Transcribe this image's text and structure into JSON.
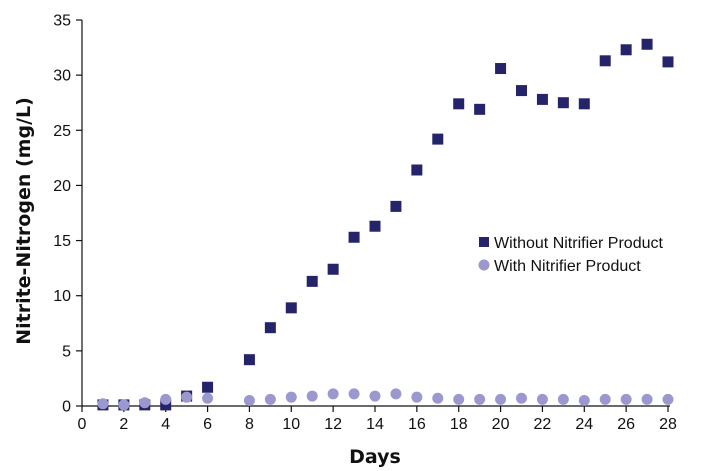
{
  "chart_data": {
    "type": "scatter",
    "xlabel": "Days",
    "ylabel": "Nitrite-Nitrogen (mg/L)",
    "xlim": [
      0,
      28
    ],
    "ylim": [
      0,
      35
    ],
    "xticks": [
      0,
      2,
      4,
      6,
      8,
      10,
      12,
      14,
      16,
      18,
      20,
      22,
      24,
      26,
      28
    ],
    "yticks": [
      0,
      5,
      10,
      15,
      20,
      25,
      30,
      35
    ],
    "grid": false,
    "legend_position": "center-right",
    "series": [
      {
        "name": "Without Nitrifier Product",
        "marker": "square",
        "color": "#25246b",
        "x": [
          1,
          2,
          3,
          4,
          5,
          6,
          8,
          9,
          10,
          11,
          12,
          13,
          14,
          15,
          16,
          17,
          18,
          19,
          20,
          21,
          22,
          23,
          24,
          25,
          26,
          27,
          28
        ],
        "y": [
          0.1,
          0.1,
          0.1,
          0.1,
          0.9,
          1.7,
          4.2,
          7.1,
          8.9,
          11.3,
          12.4,
          15.3,
          16.3,
          18.1,
          21.4,
          24.2,
          27.4,
          26.9,
          30.6,
          28.6,
          27.8,
          27.5,
          27.4,
          31.3,
          32.3,
          32.8,
          31.2
        ]
      },
      {
        "name": "With Nitrifier Product",
        "marker": "circle",
        "color": "#9b98d0",
        "x": [
          1,
          2,
          3,
          4,
          5,
          6,
          8,
          9,
          10,
          11,
          12,
          13,
          14,
          15,
          16,
          17,
          18,
          19,
          20,
          21,
          22,
          23,
          24,
          25,
          26,
          27,
          28
        ],
        "y": [
          0.2,
          0.1,
          0.3,
          0.6,
          0.8,
          0.7,
          0.5,
          0.6,
          0.8,
          0.9,
          1.1,
          1.1,
          0.9,
          1.1,
          0.8,
          0.7,
          0.6,
          0.6,
          0.6,
          0.7,
          0.6,
          0.6,
          0.5,
          0.6,
          0.6,
          0.6,
          0.6
        ]
      }
    ]
  }
}
